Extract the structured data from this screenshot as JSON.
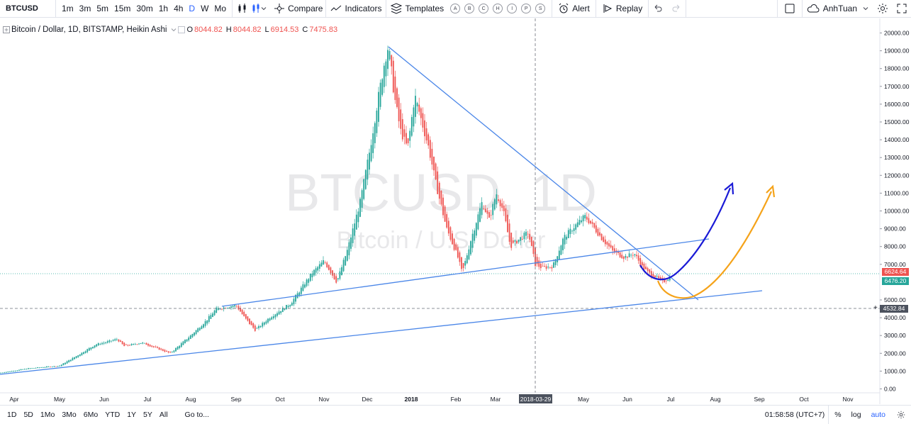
{
  "toolbar": {
    "symbol": "BTCUSD",
    "intervals": [
      "1m",
      "3m",
      "5m",
      "15m",
      "30m",
      "1h",
      "4h",
      "D",
      "W",
      "Mo"
    ],
    "active_interval": "D",
    "compare": "Compare",
    "indicators": "Indicators",
    "templates": "Templates",
    "template_letters": [
      "A",
      "B",
      "C",
      "H",
      "I",
      "P",
      "S"
    ],
    "alert": "Alert",
    "replay": "Replay",
    "user": "AnhTuan"
  },
  "legend": {
    "title": "Bitcoin / Dollar, 1D, BITSTAMP, Heikin Ashi",
    "o_label": "O",
    "o_value": "8044.82",
    "h_label": "H",
    "h_value": "8044.82",
    "l_label": "L",
    "l_value": "6914.53",
    "c_label": "C",
    "c_value": "7475.83"
  },
  "watermark": {
    "line1": "BTCUSD, 1D",
    "line2": "Bitcoin / U.S. Dollar"
  },
  "price_axis": {
    "ticks": [
      "20000.00",
      "19000.00",
      "18000.00",
      "17000.00",
      "16000.00",
      "15000.00",
      "14000.00",
      "13000.00",
      "12000.00",
      "11000.00",
      "10000.00",
      "9000.00",
      "8000.00",
      "7000.00",
      "5000.00",
      "4000.00",
      "3000.00",
      "2000.00",
      "1000.00",
      "0.00"
    ],
    "tag_last": "6624.64",
    "tag_close": "6476.20",
    "tag_cross": "4532.84"
  },
  "time_axis": {
    "ticks": [
      "Apr",
      "May",
      "Jun",
      "Jul",
      "Aug",
      "Sep",
      "Oct",
      "Nov",
      "Dec",
      "2018",
      "Feb",
      "Mar",
      "May",
      "Jun",
      "Jul",
      "Aug",
      "Sep",
      "Oct",
      "Nov"
    ],
    "cursor_label": "2018-03-29"
  },
  "bottom": {
    "ranges": [
      "1D",
      "5D",
      "1Mo",
      "3Mo",
      "6Mo",
      "YTD",
      "1Y",
      "5Y",
      "All"
    ],
    "goto": "Go to...",
    "clock": "01:58:58 (UTC+7)",
    "percent": "%",
    "log": "log",
    "auto": "auto"
  },
  "colors": {
    "up": "#26a69a",
    "down": "#ef5350",
    "trendline": "#4a86e8",
    "projection_blue": "#1a1ad6",
    "projection_orange": "#f5a31a",
    "accent": "#2962ff"
  },
  "chart_data": {
    "type": "candlestick",
    "style": "Heikin Ashi",
    "ylim": [
      0,
      20000
    ],
    "close_path": [
      [
        "Apr",
        1100
      ],
      [
        "May",
        1700
      ],
      [
        "Jun",
        2700
      ],
      [
        "Jul",
        2500
      ],
      [
        "Aug",
        4200
      ],
      [
        "Sep",
        4400
      ],
      [
        "Oct",
        5200
      ],
      [
        "Nov",
        7500
      ],
      [
        "Dec",
        14500
      ],
      [
        "2018-Dec-17",
        19200
      ],
      [
        "2018",
        14000
      ],
      [
        "Feb",
        6500
      ],
      [
        "Mar",
        11000
      ],
      [
        "2018-03-29",
        6900
      ],
      [
        "May",
        9800
      ],
      [
        "Jun",
        7500
      ],
      [
        "Jul",
        6300
      ]
    ]
  }
}
